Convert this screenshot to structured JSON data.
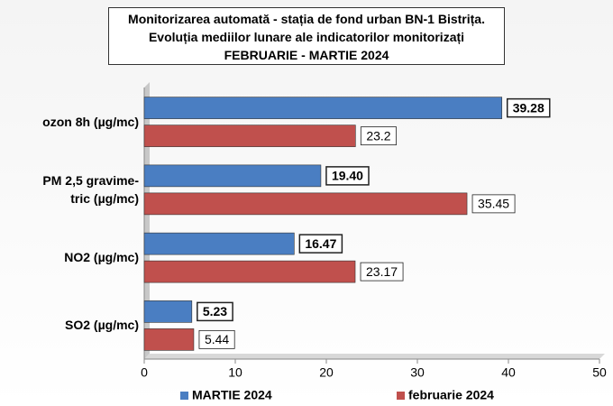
{
  "chart_data": {
    "type": "hbar",
    "title": "Monitorizarea automată  - stația de fond urban BN-1 Bistrița.\nEvoluția mediilor lunare ale indicatorilor monitorizați\nFEBRUARIE - MARTIE 2024",
    "categories": [
      "ozon 8h (µg/mc)",
      "PM 2,5 gravime-\ntric (µg/mc)",
      "NO2 (µg/mc)",
      "SO2 (µg/mc)"
    ],
    "series": [
      {
        "name": "MARTIE 2024",
        "color": "#4a7ec2",
        "values": [
          39.28,
          19.4,
          16.47,
          5.23
        ],
        "value_labels": [
          "39.28",
          "19.40",
          "16.47",
          "5.23"
        ]
      },
      {
        "name": "februarie 2024",
        "color": "#c0504d",
        "values": [
          23.2,
          35.45,
          23.17,
          5.44
        ]
      }
    ],
    "xlim": [
      0,
      50
    ],
    "xticks": [
      0,
      10,
      20,
      30,
      40,
      50
    ],
    "legend": "bottom"
  }
}
